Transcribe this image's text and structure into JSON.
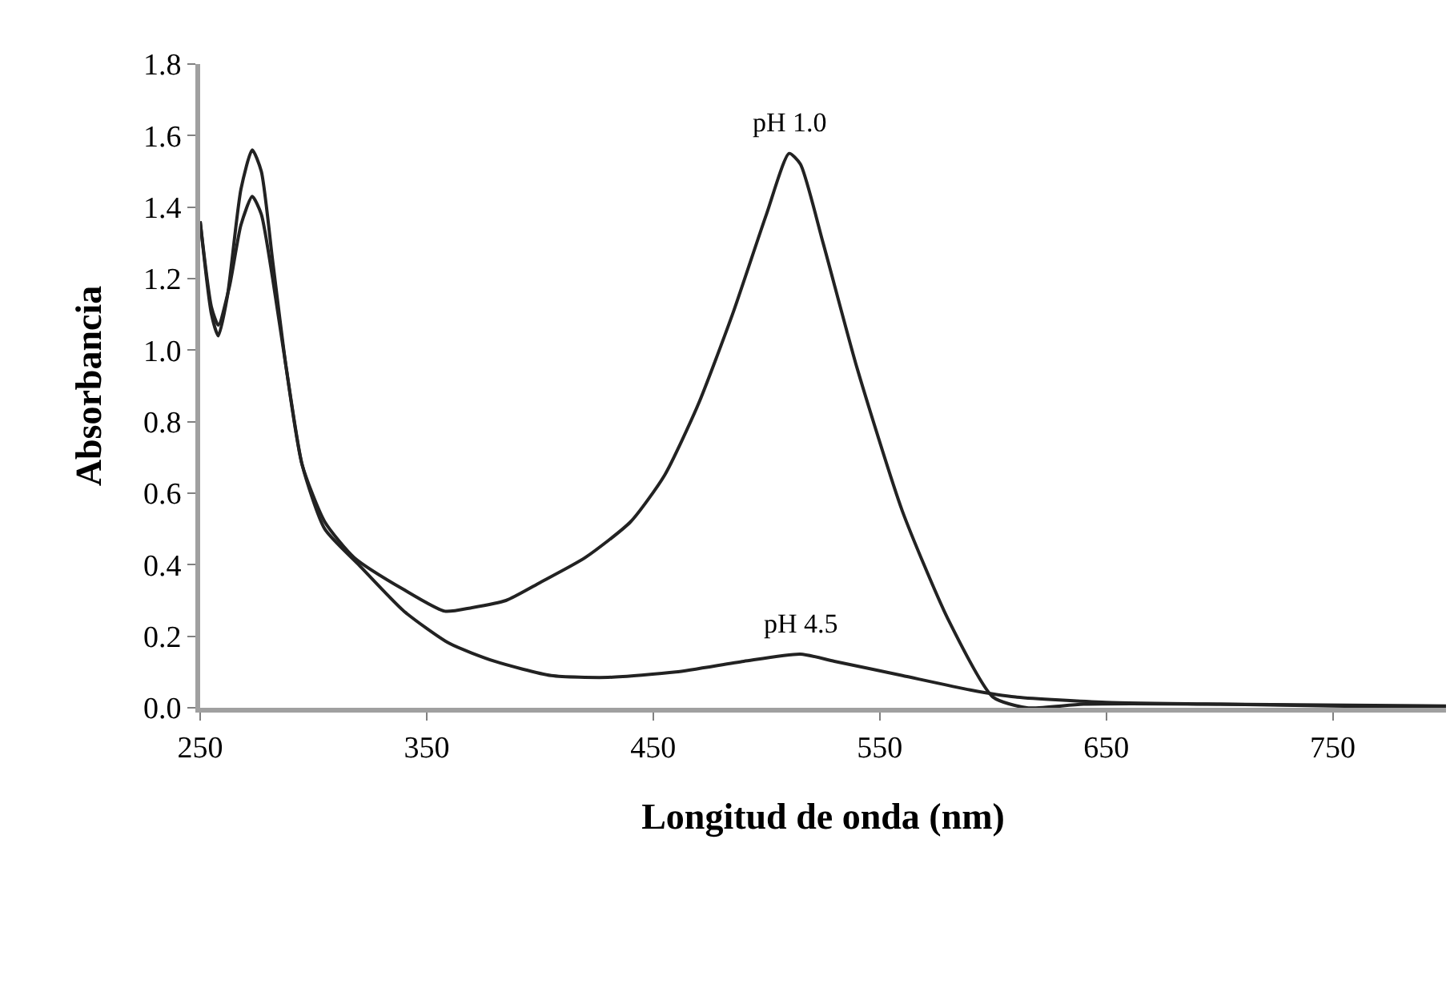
{
  "chart_data": {
    "type": "line",
    "xlabel": "Longitud de onda (nm)",
    "ylabel": "Absorbancia",
    "xlim": [
      250,
      800
    ],
    "xticks": [
      250,
      350,
      450,
      550,
      650,
      750
    ],
    "ylim": [
      0,
      1.8
    ],
    "yticks": [
      {
        "value": 0,
        "label": "0.0"
      },
      0.2,
      0.4,
      0.6,
      0.8,
      {
        "value": 1,
        "label": "1.0"
      },
      1.2,
      1.4,
      1.6,
      1.8
    ],
    "annotations": [
      {
        "text": "pH 1.0",
        "x": 510,
        "y": 1.55
      },
      {
        "text": "pH 4.5",
        "x": 515,
        "y": 0.15
      }
    ],
    "legend": false,
    "marker": "none",
    "line_style": "solid",
    "series": [
      {
        "color": "#222222",
        "x": [
          250,
          255,
          258,
          262,
          268,
          273,
          277,
          282,
          288,
          295,
          305,
          318,
          340,
          358,
          370,
          385,
          400,
          420,
          440,
          455,
          470,
          485,
          500,
          510,
          515,
          525,
          540,
          560,
          580,
          600,
          615,
          640,
          700,
          800
        ],
        "values": [
          1.36,
          1.1,
          1.04,
          1.15,
          1.45,
          1.56,
          1.5,
          1.25,
          0.95,
          0.68,
          0.52,
          0.42,
          0.33,
          0.27,
          0.28,
          0.3,
          0.35,
          0.42,
          0.52,
          0.65,
          0.85,
          1.1,
          1.38,
          1.55,
          1.52,
          1.3,
          0.95,
          0.55,
          0.25,
          0.03,
          0.0,
          0.01,
          0.01,
          0.0
        ]
      },
      {
        "color": "#222222",
        "x": [
          250,
          255,
          258,
          263,
          268,
          273,
          277,
          282,
          288,
          295,
          305,
          320,
          340,
          360,
          380,
          405,
          430,
          460,
          490,
          515,
          530,
          560,
          590,
          610,
          650,
          700,
          800
        ],
        "values": [
          1.36,
          1.12,
          1.07,
          1.18,
          1.35,
          1.43,
          1.38,
          1.2,
          0.95,
          0.68,
          0.5,
          0.4,
          0.27,
          0.18,
          0.13,
          0.09,
          0.085,
          0.1,
          0.13,
          0.15,
          0.13,
          0.09,
          0.05,
          0.03,
          0.015,
          0.01,
          0.005
        ]
      }
    ]
  }
}
